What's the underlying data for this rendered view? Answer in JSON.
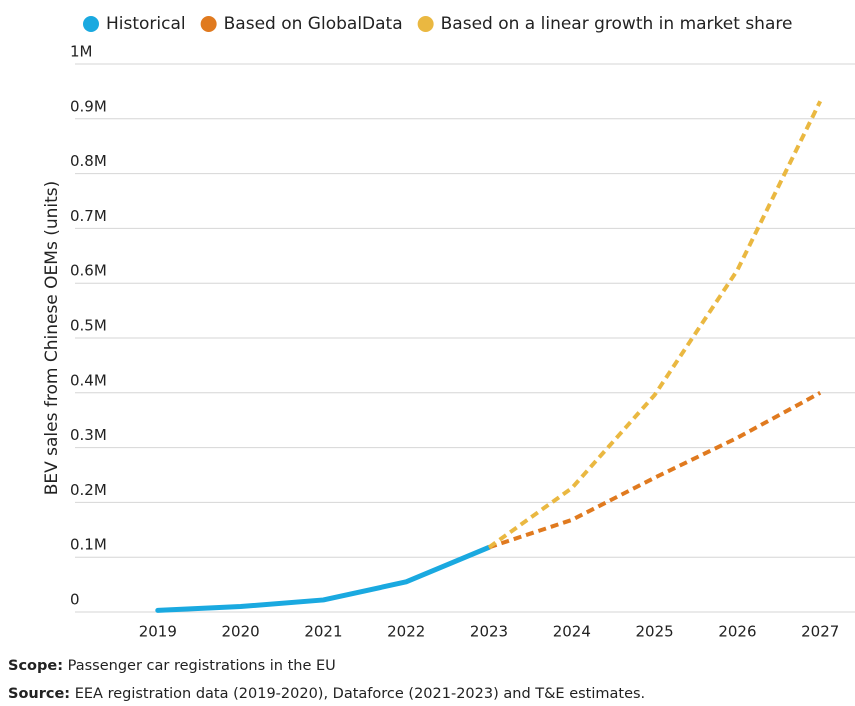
{
  "chart_data": {
    "type": "line",
    "y_label": "BEV sales from Chinese OEMs (units)",
    "x": [
      2019,
      2020,
      2021,
      2022,
      2023,
      2024,
      2025,
      2026,
      2027
    ],
    "series": [
      {
        "name": "Historical",
        "color": "#1aa9e0",
        "style": "solid",
        "values": [
          3000,
          10000,
          22000,
          55000,
          118000,
          null,
          null,
          null,
          null
        ]
      },
      {
        "name": "Based on GlobalData",
        "color": "#e07a1f",
        "style": "dashed",
        "values": [
          null,
          null,
          null,
          null,
          118000,
          168000,
          245000,
          318000,
          400000
        ]
      },
      {
        "name": "Based on a linear growth in market share",
        "color": "#eab841",
        "style": "dashed",
        "values": [
          null,
          null,
          null,
          null,
          118000,
          226000,
          396000,
          624000,
          932000
        ]
      }
    ],
    "xlim": [
      2018,
      2027.42
    ],
    "xticks": [
      2019,
      2020,
      2021,
      2022,
      2023,
      2024,
      2025,
      2026,
      2027
    ],
    "ylim": [
      0,
      1000000
    ],
    "yticks": [
      0,
      {
        "value": 100000,
        "label": "0.1M"
      },
      {
        "value": 200000,
        "label": "0.2M"
      },
      {
        "value": 300000,
        "label": "0.3M"
      },
      {
        "value": 400000,
        "label": "0.4M"
      },
      {
        "value": 500000,
        "label": "0.5M"
      },
      {
        "value": 600000,
        "label": "0.6M"
      },
      {
        "value": 700000,
        "label": "0.7M"
      },
      {
        "value": 800000,
        "label": "0.8M"
      },
      {
        "value": 900000,
        "label": "0.9M"
      },
      {
        "value": 1000000,
        "label": "1M"
      }
    ],
    "grid": true,
    "legend": "top",
    "scope_label": "Scope:",
    "scope_text": "Passenger car registrations in the EU",
    "source_label": "Source:",
    "source_text": "EEA registration data (2019-2020), Dataforce (2021-2023) and T&E estimates."
  }
}
